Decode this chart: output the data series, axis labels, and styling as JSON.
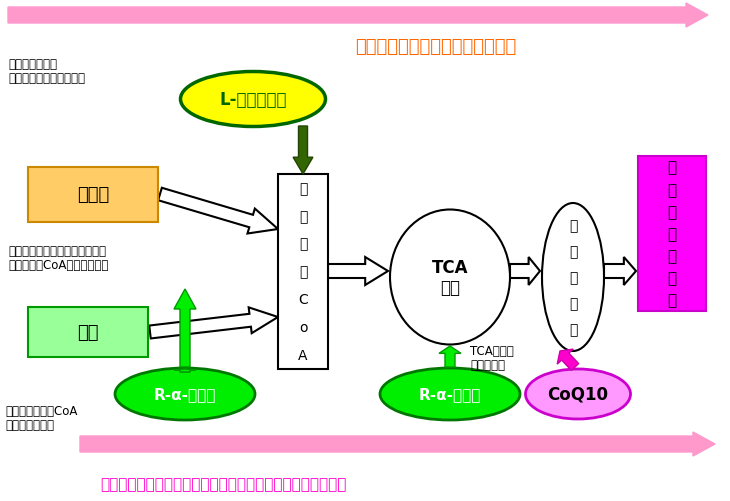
{
  "bg_color": "#ffffff",
  "top_arrow_color": "#ff99cc",
  "bottom_arrow_color": "#ff99cc",
  "top_text": "エネルギー産生の反応は酸化反応",
  "top_text_color": "#ff6600",
  "bottom_text": "ミトコンドリア内で還元体に変換され抗酸化物質として働く",
  "bottom_text_color": "#ff00cc",
  "l_carnitine_label": "L-カルニチン",
  "l_carnitine_color": "#ffff00",
  "l_carnitine_edge_color": "#006600",
  "l_carnitine_text_color": "#006600",
  "lipid_label": "脂　質",
  "lipid_color": "#ffcc66",
  "sugar_label": "糖質",
  "sugar_color": "#99ff99",
  "acetyl_coa_label": "アセチルCoA",
  "tca_label": "TCA\n回路",
  "electron_label": "電子伝達系",
  "energy_label": "エネルギー産生",
  "energy_color": "#ff00ff",
  "rlipoic1_label": "R-α-リボ酸",
  "rlipoic2_label": "R-α-リボ酸",
  "coq10_label": "CoQ10",
  "rlipoic_color": "#00ee00",
  "coq10_color": "#ff99ff",
  "annotation1_l1": "脂肪酸と結合し",
  "annotation1_l2": "ミトコンドリア膜を通過",
  "annotation2_l1": "脂質と糖質はミトコンドリア内",
  "annotation2_l2": "でアセチルCoAに変換される",
  "annotation3_l1": "TCA回路の",
  "annotation3_l2": "回転に関与",
  "annotation4_l1": "糖質のアセチルCoA",
  "annotation4_l2": "への変換に関与"
}
